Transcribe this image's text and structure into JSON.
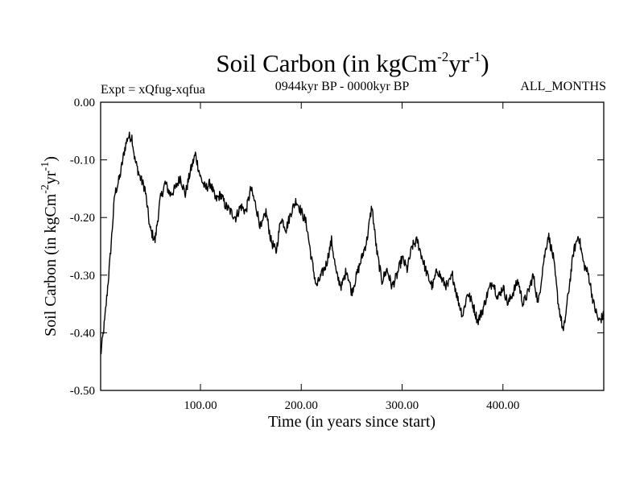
{
  "chart_data": {
    "type": "line",
    "title": {
      "base": "Soil Carbon (in kgCm",
      "sup1": "-2",
      "mid": "yr",
      "sup2": "-1",
      "end": ")"
    },
    "subtitle_left": "Expt = xQfug-xqfua",
    "subtitle_center": "0944kyr BP - 0000kyr BP",
    "subtitle_right": "ALL_MONTHS",
    "xlabel": "Time (in years since start)",
    "ylabel": {
      "base": "Soil Carbon (in kgCm",
      "sup1": "-2",
      "mid": "yr",
      "sup2": "-1",
      "end": ")"
    },
    "xlim": [
      1,
      500
    ],
    "ylim": [
      -0.5,
      0.0
    ],
    "xticks": [
      100,
      200,
      300,
      400
    ],
    "xtick_labels": [
      "100.00",
      "200.00",
      "300.00",
      "400.00"
    ],
    "yticks": [
      0.0,
      -0.1,
      -0.2,
      -0.3,
      -0.4,
      -0.5
    ],
    "ytick_labels": [
      "0.00",
      "-0.10",
      "-0.20",
      "-0.30",
      "-0.40",
      "-0.50"
    ],
    "series": [
      {
        "name": "Soil Carbon",
        "color": "#000000",
        "x": [
          1,
          5,
          10,
          15,
          20,
          25,
          28,
          32,
          35,
          40,
          45,
          50,
          55,
          60,
          65,
          70,
          75,
          80,
          85,
          90,
          95,
          100,
          105,
          110,
          115,
          120,
          125,
          130,
          135,
          140,
          145,
          150,
          155,
          160,
          165,
          170,
          175,
          180,
          185,
          190,
          195,
          200,
          205,
          210,
          215,
          220,
          225,
          230,
          235,
          240,
          245,
          250,
          255,
          260,
          265,
          270,
          275,
          280,
          285,
          290,
          295,
          300,
          305,
          310,
          315,
          320,
          325,
          330,
          335,
          340,
          345,
          350,
          355,
          360,
          365,
          370,
          375,
          380,
          385,
          390,
          395,
          400,
          405,
          410,
          415,
          420,
          425,
          430,
          435,
          440,
          445,
          450,
          455,
          460,
          465,
          470,
          475,
          480,
          485,
          490,
          495,
          500
        ],
        "values": [
          -0.44,
          -0.38,
          -0.28,
          -0.16,
          -0.13,
          -0.08,
          -0.06,
          -0.06,
          -0.1,
          -0.13,
          -0.15,
          -0.22,
          -0.24,
          -0.17,
          -0.14,
          -0.16,
          -0.15,
          -0.13,
          -0.16,
          -0.12,
          -0.09,
          -0.13,
          -0.15,
          -0.14,
          -0.17,
          -0.16,
          -0.18,
          -0.19,
          -0.2,
          -0.18,
          -0.19,
          -0.15,
          -0.18,
          -0.22,
          -0.19,
          -0.24,
          -0.26,
          -0.2,
          -0.22,
          -0.19,
          -0.17,
          -0.19,
          -0.21,
          -0.27,
          -0.32,
          -0.3,
          -0.28,
          -0.24,
          -0.3,
          -0.32,
          -0.29,
          -0.33,
          -0.3,
          -0.27,
          -0.24,
          -0.18,
          -0.26,
          -0.31,
          -0.29,
          -0.32,
          -0.3,
          -0.27,
          -0.29,
          -0.25,
          -0.24,
          -0.27,
          -0.3,
          -0.32,
          -0.29,
          -0.31,
          -0.32,
          -0.3,
          -0.34,
          -0.37,
          -0.33,
          -0.35,
          -0.38,
          -0.36,
          -0.33,
          -0.31,
          -0.34,
          -0.32,
          -0.35,
          -0.33,
          -0.31,
          -0.35,
          -0.33,
          -0.3,
          -0.35,
          -0.28,
          -0.23,
          -0.27,
          -0.35,
          -0.4,
          -0.33,
          -0.26,
          -0.23,
          -0.28,
          -0.3,
          -0.35,
          -0.38,
          -0.37
        ]
      }
    ]
  }
}
